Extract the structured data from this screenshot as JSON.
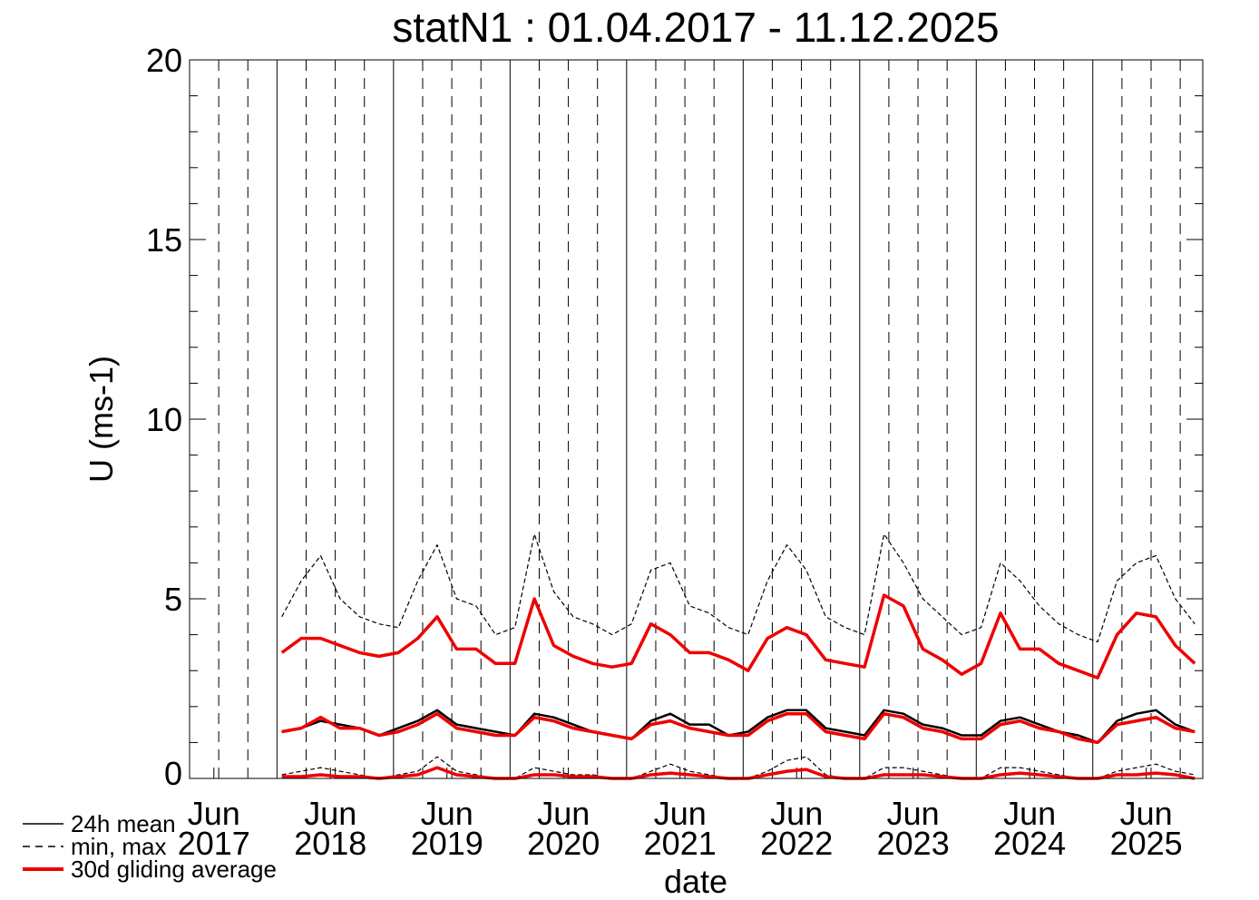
{
  "chart_data": {
    "type": "line",
    "title": "statN1 : 01.04.2017 - 11.12.2025",
    "x_label": "date",
    "y_label": "U (ms-1)",
    "xlim": [
      "2017-04-01",
      "2025-12-11"
    ],
    "xticks": [
      {
        "value": "2017-06",
        "label": "Jun 2017"
      },
      {
        "value": "2018-06",
        "label": "Jun 2018"
      },
      {
        "value": "2019-06",
        "label": "Jun 2019"
      },
      {
        "value": "2020-06",
        "label": "Jun 2020"
      },
      {
        "value": "2021-06",
        "label": "Jun 2021"
      },
      {
        "value": "2022-06",
        "label": "Jun 2022"
      },
      {
        "value": "2023-06",
        "label": "Jun 2023"
      },
      {
        "value": "2024-06",
        "label": "Jun 2024"
      },
      {
        "value": "2025-06",
        "label": "Jun 2025"
      }
    ],
    "ylim": [
      0,
      20
    ],
    "yticks": [
      0,
      5,
      10,
      15,
      20
    ],
    "grid": true,
    "legend": "lower left",
    "x": [
      "2018-01",
      "2018-03",
      "2018-05",
      "2018-07",
      "2018-09",
      "2018-11",
      "2019-01",
      "2019-03",
      "2019-05",
      "2019-07",
      "2019-09",
      "2019-11",
      "2020-01",
      "2020-03",
      "2020-05",
      "2020-07",
      "2020-09",
      "2020-11",
      "2021-01",
      "2021-03",
      "2021-05",
      "2021-07",
      "2021-09",
      "2021-11",
      "2022-01",
      "2022-03",
      "2022-05",
      "2022-07",
      "2022-09",
      "2022-11",
      "2023-01",
      "2023-03",
      "2023-05",
      "2023-07",
      "2023-09",
      "2023-11",
      "2024-01",
      "2024-03",
      "2024-05",
      "2024-07",
      "2024-09",
      "2024-11",
      "2025-01",
      "2025-03",
      "2025-05",
      "2025-07",
      "2025-09",
      "2025-11"
    ],
    "series": [
      {
        "name": "24h mean",
        "color": "#000000",
        "line_style": "solid",
        "values": [
          1.3,
          1.4,
          1.6,
          1.5,
          1.4,
          1.2,
          1.4,
          1.6,
          1.9,
          1.5,
          1.4,
          1.3,
          1.2,
          1.8,
          1.7,
          1.5,
          1.3,
          1.2,
          1.1,
          1.6,
          1.8,
          1.5,
          1.5,
          1.2,
          1.3,
          1.7,
          1.9,
          1.9,
          1.4,
          1.3,
          1.2,
          1.9,
          1.8,
          1.5,
          1.4,
          1.2,
          1.2,
          1.6,
          1.7,
          1.5,
          1.3,
          1.2,
          1.0,
          1.6,
          1.8,
          1.9,
          1.5,
          1.3
        ]
      },
      {
        "name": "min, max",
        "color": "#000000",
        "line_style": "dashed",
        "values": [
          4.5,
          5.5,
          6.2,
          5.0,
          4.5,
          4.3,
          4.2,
          5.5,
          6.5,
          5.0,
          4.8,
          4.0,
          4.2,
          6.8,
          5.2,
          4.5,
          4.3,
          4.0,
          4.3,
          5.8,
          6.0,
          4.8,
          4.6,
          4.2,
          4.0,
          5.5,
          6.5,
          5.8,
          4.5,
          4.2,
          4.0,
          6.8,
          6.0,
          5.0,
          4.5,
          4.0,
          4.2,
          6.0,
          5.5,
          4.8,
          4.3,
          4.0,
          3.8,
          5.5,
          6.0,
          6.2,
          5.0,
          4.3
        ]
      },
      {
        "color": "#000000",
        "line_style": "dashed",
        "values": [
          0.1,
          0.2,
          0.3,
          0.2,
          0.1,
          0.0,
          0.1,
          0.2,
          0.6,
          0.2,
          0.1,
          0.0,
          0.0,
          0.3,
          0.2,
          0.1,
          0.1,
          0.0,
          0.0,
          0.2,
          0.4,
          0.2,
          0.1,
          0.0,
          0.0,
          0.2,
          0.5,
          0.6,
          0.1,
          0.0,
          0.0,
          0.3,
          0.3,
          0.2,
          0.1,
          0.0,
          0.0,
          0.3,
          0.3,
          0.2,
          0.1,
          0.0,
          0.0,
          0.2,
          0.3,
          0.4,
          0.2,
          0.1
        ]
      },
      {
        "name": "30d gliding average",
        "color": "#ee0000",
        "line_style": "solid",
        "values": [
          3.5,
          3.9,
          3.9,
          3.7,
          3.5,
          3.4,
          3.5,
          3.9,
          4.5,
          3.6,
          3.6,
          3.2,
          3.2,
          5.0,
          3.7,
          3.4,
          3.2,
          3.1,
          3.2,
          4.3,
          4.0,
          3.5,
          3.5,
          3.3,
          3.0,
          3.9,
          4.2,
          4.0,
          3.3,
          3.2,
          3.1,
          5.1,
          4.8,
          3.6,
          3.3,
          2.9,
          3.2,
          4.6,
          3.6,
          3.6,
          3.2,
          3.0,
          2.8,
          4.0,
          4.6,
          4.5,
          3.7,
          3.2
        ]
      },
      {
        "color": "#ee0000",
        "line_style": "solid",
        "values": [
          1.3,
          1.4,
          1.7,
          1.4,
          1.4,
          1.2,
          1.3,
          1.5,
          1.8,
          1.4,
          1.3,
          1.2,
          1.2,
          1.7,
          1.6,
          1.4,
          1.3,
          1.2,
          1.1,
          1.5,
          1.6,
          1.4,
          1.3,
          1.2,
          1.2,
          1.6,
          1.8,
          1.8,
          1.3,
          1.2,
          1.1,
          1.8,
          1.7,
          1.4,
          1.3,
          1.1,
          1.1,
          1.5,
          1.6,
          1.4,
          1.3,
          1.1,
          1.0,
          1.5,
          1.6,
          1.7,
          1.4,
          1.3
        ]
      },
      {
        "color": "#ee0000",
        "line_style": "solid",
        "values": [
          0.05,
          0.05,
          0.1,
          0.05,
          0.05,
          0.0,
          0.05,
          0.1,
          0.3,
          0.1,
          0.05,
          0.0,
          0.0,
          0.1,
          0.1,
          0.05,
          0.05,
          0.0,
          0.0,
          0.1,
          0.15,
          0.1,
          0.05,
          0.0,
          0.0,
          0.1,
          0.2,
          0.25,
          0.05,
          0.0,
          0.0,
          0.1,
          0.1,
          0.1,
          0.05,
          0.0,
          0.0,
          0.1,
          0.15,
          0.1,
          0.05,
          0.0,
          0.0,
          0.1,
          0.1,
          0.15,
          0.1,
          0.0
        ]
      }
    ]
  }
}
